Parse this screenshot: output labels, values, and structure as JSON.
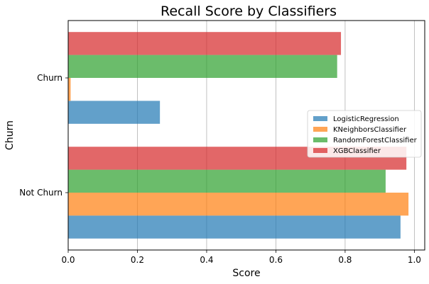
{
  "chart_data": {
    "type": "bar",
    "orientation": "horizontal",
    "title": "Recall Score by Classifiers",
    "xlabel": "Score",
    "ylabel": "Churn",
    "categories": [
      "Not Churn",
      "Churn"
    ],
    "xlim": [
      0,
      1.03
    ],
    "xticks": [
      "0.0",
      "0.2",
      "0.4",
      "0.6",
      "0.8",
      "1.0"
    ],
    "grid": "vertical",
    "legend_position": "right",
    "series": [
      {
        "name": "LogisticRegression",
        "color": "#1f77b4",
        "values": [
          0.96,
          0.265
        ]
      },
      {
        "name": "KNeighborsClassifier",
        "color": "#ff7f0e",
        "values": [
          0.983,
          0.007
        ]
      },
      {
        "name": "RandomForestClassifier",
        "color": "#2ca02c",
        "values": [
          0.917,
          0.777
        ]
      },
      {
        "name": "XGBClassifier",
        "color": "#d62728",
        "values": [
          0.977,
          0.788
        ]
      }
    ]
  }
}
